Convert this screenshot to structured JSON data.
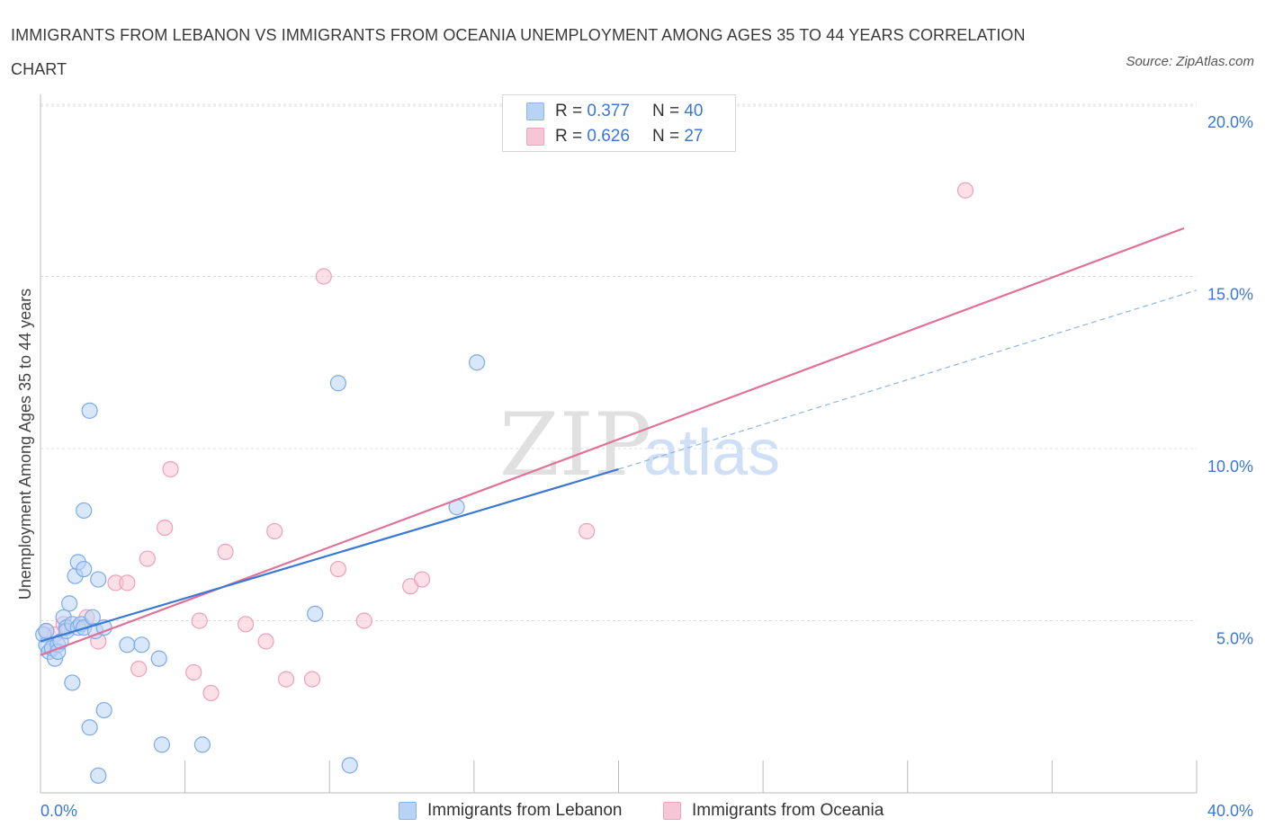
{
  "title": "IMMIGRANTS FROM LEBANON VS IMMIGRANTS FROM OCEANIA UNEMPLOYMENT AMONG AGES 35 TO 44 YEARS CORRELATION CHART",
  "source": "Source: ZipAtlas.com",
  "watermark": {
    "zip": "ZIP",
    "atlas": "atlas"
  },
  "colors": {
    "blue": "#3a78d4",
    "blue_fill": "#b8d3f5",
    "pink": "#e07199",
    "pink_fill": "#f7c6d6",
    "grid": "#dddddd"
  },
  "legend": {
    "r_label": "R =",
    "n_label": "N =",
    "rows": [
      {
        "series": "Immigrants from Lebanon",
        "r": "0.377",
        "n": "40"
      },
      {
        "series": "Immigrants from Oceania",
        "r": "0.626",
        "n": "27"
      }
    ]
  },
  "chart_data": {
    "type": "scatter",
    "title": "IMMIGRANTS FROM LEBANON VS IMMIGRANTS FROM OCEANIA UNEMPLOYMENT AMONG AGES 35 TO 44 YEARS CORRELATION CHART",
    "xlabel": "",
    "ylabel": "Unemployment Among Ages 35 to 44 years",
    "xlim": [
      0,
      40
    ],
    "ylim": [
      0,
      20
    ],
    "x_tick_labels": [
      "0.0%",
      "40.0%"
    ],
    "y_ticks": [
      5,
      10,
      15,
      20
    ],
    "y_tick_labels": [
      "5.0%",
      "10.0%",
      "15.0%",
      "20.0%"
    ],
    "grid": true,
    "legend_position": "bottom-center",
    "series": [
      {
        "name": "Immigrants from Lebanon",
        "points": [
          [
            0.1,
            4.6
          ],
          [
            0.2,
            4.3
          ],
          [
            0.3,
            4.1
          ],
          [
            0.4,
            4.2
          ],
          [
            0.5,
            3.9
          ],
          [
            0.6,
            4.3
          ],
          [
            0.6,
            4.1
          ],
          [
            0.7,
            4.4
          ],
          [
            0.8,
            5.1
          ],
          [
            0.9,
            4.8
          ],
          [
            0.9,
            4.7
          ],
          [
            1.0,
            5.5
          ],
          [
            1.1,
            4.9
          ],
          [
            1.2,
            6.3
          ],
          [
            1.3,
            4.8
          ],
          [
            1.3,
            6.7
          ],
          [
            1.4,
            4.9
          ],
          [
            1.5,
            6.5
          ],
          [
            1.5,
            8.2
          ],
          [
            1.5,
            4.8
          ],
          [
            1.7,
            1.9
          ],
          [
            1.7,
            11.1
          ],
          [
            1.8,
            5.1
          ],
          [
            1.9,
            4.7
          ],
          [
            2.0,
            6.2
          ],
          [
            2.0,
            0.5
          ],
          [
            2.2,
            4.8
          ],
          [
            2.2,
            2.4
          ],
          [
            1.1,
            3.2
          ],
          [
            3.0,
            4.3
          ],
          [
            3.5,
            4.3
          ],
          [
            4.1,
            3.9
          ],
          [
            4.2,
            1.4
          ],
          [
            5.6,
            1.4
          ],
          [
            9.5,
            5.2
          ],
          [
            10.3,
            11.9
          ],
          [
            10.7,
            0.8
          ],
          [
            14.4,
            8.3
          ],
          [
            15.1,
            12.5
          ],
          [
            0.2,
            4.7
          ]
        ],
        "trend": {
          "x0": 0,
          "y0": 4.4,
          "x1": 20,
          "y1": 9.4,
          "dashed_to_x": 40,
          "dashed_to_y": 14.6
        }
      },
      {
        "name": "Immigrants from Oceania",
        "points": [
          [
            0.2,
            4.7
          ],
          [
            0.5,
            4.6
          ],
          [
            0.8,
            4.9
          ],
          [
            1.6,
            5.1
          ],
          [
            2.0,
            4.4
          ],
          [
            2.6,
            6.1
          ],
          [
            3.0,
            6.1
          ],
          [
            3.4,
            3.6
          ],
          [
            3.7,
            6.8
          ],
          [
            4.3,
            7.7
          ],
          [
            4.5,
            9.4
          ],
          [
            5.3,
            3.5
          ],
          [
            5.5,
            5.0
          ],
          [
            5.9,
            2.9
          ],
          [
            6.4,
            7.0
          ],
          [
            7.1,
            4.9
          ],
          [
            7.8,
            4.4
          ],
          [
            8.1,
            7.6
          ],
          [
            8.5,
            3.3
          ],
          [
            9.4,
            3.3
          ],
          [
            9.8,
            15.0
          ],
          [
            10.3,
            6.5
          ],
          [
            11.2,
            5.0
          ],
          [
            12.8,
            6.0
          ],
          [
            13.2,
            6.2
          ],
          [
            18.9,
            7.6
          ],
          [
            32.0,
            17.5
          ]
        ],
        "trend": {
          "x0": 0,
          "y0": 4.0,
          "x1": 40,
          "y1": 16.4
        }
      }
    ]
  }
}
